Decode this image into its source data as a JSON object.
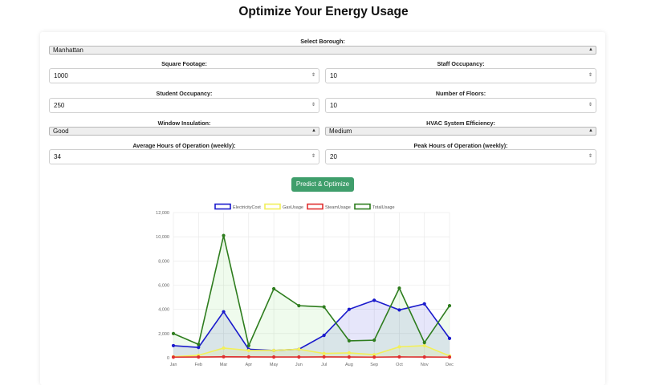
{
  "page": {
    "title": "Optimize Your Energy Usage"
  },
  "form": {
    "borough": {
      "label": "Select Borough:",
      "value": "Manhattan"
    },
    "square_footage": {
      "label": "Square Footage:",
      "value": "1000"
    },
    "staff_occupancy": {
      "label": "Staff Occupancy:",
      "value": "10"
    },
    "student_occupancy": {
      "label": "Student Occupancy:",
      "value": "250"
    },
    "number_of_floors": {
      "label": "Number of Floors:",
      "value": "10"
    },
    "window_insulation": {
      "label": "Window Insulation:",
      "value": "Good"
    },
    "hvac_efficiency": {
      "label": "HVAC System Efficiency:",
      "value": "Medium"
    },
    "avg_hours": {
      "label": "Average Hours of Operation (weekly):",
      "value": "34"
    },
    "peak_hours": {
      "label": "Peak Hours of Operation (weekly):",
      "value": "20"
    },
    "submit_label": "Predict & Optimize"
  },
  "chart_data": {
    "type": "line",
    "categories": [
      "Jan",
      "Feb",
      "Mar",
      "Apr",
      "May",
      "Jun",
      "Jul",
      "Aug",
      "Sep",
      "Oct",
      "Nov",
      "Dec"
    ],
    "ylim": [
      0,
      12000
    ],
    "yticks": [
      "0",
      "2,000",
      "4,000",
      "6,000",
      "8,000",
      "10,000",
      "12,000"
    ],
    "yticks_values": [
      0,
      2000,
      4000,
      6000,
      8000,
      10000,
      12000
    ],
    "grid": true,
    "legend_position": "top",
    "series": [
      {
        "name": "ElectricityCost",
        "color": "#1a1acc",
        "fill": "rgba(60,60,220,0.13)",
        "values": [
          1000,
          850,
          3800,
          700,
          600,
          700,
          1850,
          4000,
          4750,
          3950,
          4450,
          1600
        ]
      },
      {
        "name": "GasUsage",
        "color": "#f2ef5a",
        "fill": "rgba(250,245,120,0.18)",
        "values": [
          80,
          200,
          800,
          600,
          600,
          700,
          350,
          400,
          250,
          900,
          1000,
          150
        ]
      },
      {
        "name": "SteamUsage",
        "color": "#e03030",
        "fill": "rgba(240,90,90,0.10)",
        "values": [
          50,
          60,
          80,
          70,
          60,
          60,
          70,
          60,
          50,
          70,
          60,
          50
        ]
      },
      {
        "name": "TotalUsage",
        "color": "#2e7d1e",
        "fill": "rgba(120,220,110,0.12)",
        "values": [
          2000,
          1100,
          10100,
          1000,
          5700,
          4300,
          4200,
          1400,
          1450,
          5750,
          1250,
          4300
        ]
      }
    ]
  }
}
